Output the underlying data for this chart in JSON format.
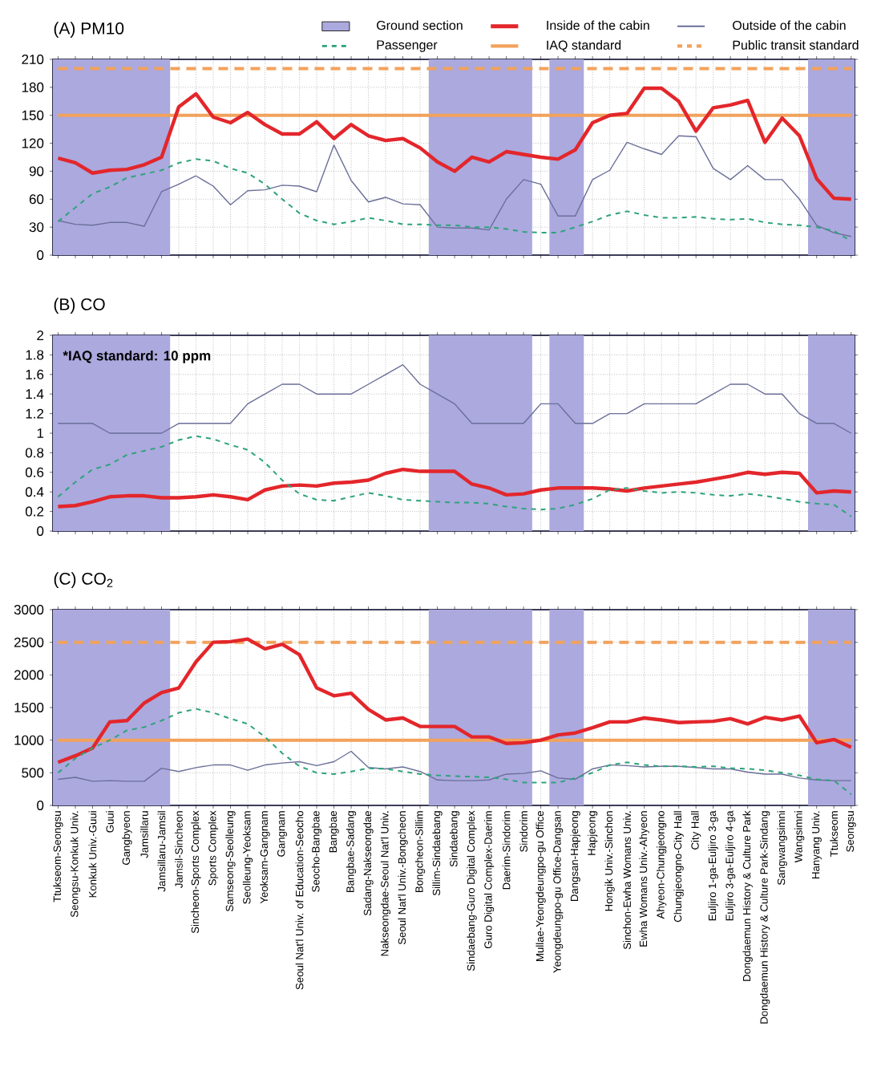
{
  "chart_data": [
    {
      "type": "line",
      "title": "(A) PM10",
      "categories": [
        "Ttukseom-Seongsu",
        "Seongsu-Konkuk Univ.",
        "Konkuk Univ.-Guui",
        "Guui",
        "Gangbyeon",
        "Jamsillaru",
        "Jamsillaru-Jamsil",
        "Jamsil-Sincheon",
        "Sincheon-Sports Complex",
        "Sports Complex",
        "Samseong-Seolleung",
        "Seolleung-Yeoksam",
        "Yeoksam-Gangnam",
        "Gangnam",
        "Seoul Nat'l Univ. of Education-Seocho",
        "Seocho-Bangbae",
        "Bangbae",
        "Bangbae-Sadang",
        "Sadang-Nakseongdae",
        "Nakseongdae-Seoul Nat'l Univ.",
        "Seoul Nat'l Univ.-Bongcheon",
        "Bongcheon-Sillim",
        "Sillim-Sindaebang",
        "Sindaebang",
        "Sindaebang-Guro Digital Complex",
        "Guro Digital Complex-Daerim",
        "Daerim-Sindorim",
        "Sindorim",
        "Mullae-Yeongdeungpo-gu Office",
        "Yeongdeungpo-gu Office-Dangsan",
        "Dangsan-Hapjeong",
        "Hapjeong",
        "Hongik Univ.-Sinchon",
        "Sinchon-Ewha Womans Univ.",
        "Ewha Womans Univ.-Ahyeon",
        "Ahyeon-Chungjeongno",
        "Chungjeongno-City Hall",
        "City Hall",
        "Euljiro 1-ga-Euljiro 3-ga",
        "Euljiro 3-ga-Euljiro 4-ga",
        "Dongdaemun History & Culture Park",
        "Dongdaemun History & Culture Park-Sindang",
        "Sangwangsimni",
        "Wangsimni",
        "Hanyang Univ.",
        "Ttukseom",
        "Seongsu"
      ],
      "series": [
        {
          "name": "Inside of the cabin",
          "color": "#e3262b",
          "values": [
            104,
            99,
            88,
            91,
            92,
            97,
            105,
            159,
            173,
            148,
            142,
            153,
            140,
            130,
            130,
            143,
            125,
            140,
            128,
            123,
            125,
            115,
            100,
            90,
            105,
            100,
            111,
            108,
            105,
            103,
            113,
            142,
            150,
            152,
            179,
            179,
            165,
            133,
            158,
            161,
            166,
            121,
            147,
            128,
            82,
            61,
            60
          ]
        },
        {
          "name": "Outside of the cabin",
          "color": "#6b6f99",
          "values": [
            37,
            33,
            32,
            35,
            35,
            31,
            68,
            76,
            85,
            74,
            54,
            69,
            70,
            75,
            74,
            68,
            118,
            80,
            57,
            62,
            55,
            54,
            30,
            29,
            29,
            27,
            60,
            81,
            76,
            42,
            42,
            81,
            91,
            121,
            114,
            108,
            128,
            127,
            93,
            81,
            96,
            81,
            81,
            60,
            32,
            24,
            20
          ]
        },
        {
          "name": "Passenger",
          "color": "#2ea37a",
          "line_style": "dashed",
          "values": [
            36,
            51,
            66,
            73,
            83,
            87,
            91,
            99,
            103,
            101,
            93,
            88,
            76,
            60,
            45,
            37,
            33,
            36,
            40,
            37,
            33,
            33,
            32,
            32,
            30,
            30,
            28,
            25,
            24,
            24,
            30,
            36,
            43,
            47,
            43,
            40,
            40,
            41,
            39,
            38,
            39,
            35,
            33,
            32,
            30,
            26,
            15
          ]
        }
      ],
      "ylim": [
        0,
        210
      ],
      "yticks": [
        0,
        30,
        60,
        90,
        120,
        150,
        180,
        210
      ],
      "ref_lines": [
        {
          "axis": "y",
          "value": 150,
          "label": "IAQ standard",
          "color": "#f2a25c",
          "line_style": "solid"
        },
        {
          "axis": "y",
          "value": 200,
          "label": "Public transit standard",
          "color": "#f2a25c",
          "line_style": "dashed"
        }
      ],
      "bands": [
        {
          "axis": "x",
          "from": "Ttukseom-Seongsu",
          "to": "Jamsillaru-Jamsil",
          "label": "Ground section",
          "color": "#aba9de"
        },
        {
          "axis": "x",
          "from": "Sillim-Sindaebang",
          "to": "Sindorim",
          "color": "#aba9de"
        },
        {
          "axis": "x",
          "from": "Yeongdeungpo-gu Office-Dangsan",
          "to": "Dangsan-Hapjeong",
          "color": "#aba9de"
        },
        {
          "axis": "x",
          "from": "Hanyang Univ.",
          "to": "Seongsu",
          "color": "#aba9de"
        }
      ],
      "grid": true,
      "legend": "top",
      "tick_labels": "y"
    },
    {
      "type": "line",
      "title": "(B) CO",
      "categories": [
        "Ttukseom-Seongsu",
        "Seongsu-Konkuk Univ.",
        "Konkuk Univ.-Guui",
        "Guui",
        "Gangbyeon",
        "Jamsillaru",
        "Jamsillaru-Jamsil",
        "Jamsil-Sincheon",
        "Sincheon-Sports Complex",
        "Sports Complex",
        "Samseong-Seolleung",
        "Seolleung-Yeoksam",
        "Yeoksam-Gangnam",
        "Gangnam",
        "Seoul Nat'l Univ. of Education-Seocho",
        "Seocho-Bangbae",
        "Bangbae",
        "Bangbae-Sadang",
        "Sadang-Nakseongdae",
        "Nakseongdae-Seoul Nat'l Univ.",
        "Seoul Nat'l Univ.-Bongcheon",
        "Bongcheon-Sillim",
        "Sillim-Sindaebang",
        "Sindaebang",
        "Sindaebang-Guro Digital Complex",
        "Guro Digital Complex-Daerim",
        "Daerim-Sindorim",
        "Sindorim",
        "Mullae-Yeongdeungpo-gu Office",
        "Yeongdeungpo-gu Office-Dangsan",
        "Dangsan-Hapjeong",
        "Hapjeong",
        "Hongik Univ.-Sinchon",
        "Sinchon-Ewha Womans Univ.",
        "Ewha Womans Univ.-Ahyeon",
        "Ahyeon-Chungjeongno",
        "Chungjeongno-City Hall",
        "City Hall",
        "Euljiro 1-ga-Euljiro 3-ga",
        "Euljiro 3-ga-Euljiro 4-ga",
        "Dongdaemun History & Culture Park",
        "Dongdaemun History & Culture Park-Sindang",
        "Sangwangsimni",
        "Wangsimni",
        "Hanyang Univ.",
        "Ttukseom",
        "Seongsu"
      ],
      "series": [
        {
          "color": "#e3262b",
          "values": [
            0.25,
            0.26,
            0.3,
            0.35,
            0.36,
            0.36,
            0.34,
            0.34,
            0.35,
            0.37,
            0.35,
            0.32,
            0.42,
            0.46,
            0.47,
            0.46,
            0.49,
            0.5,
            0.52,
            0.59,
            0.63,
            0.61,
            0.61,
            0.61,
            0.48,
            0.44,
            0.37,
            0.38,
            0.42,
            0.44,
            0.44,
            0.44,
            0.43,
            0.41,
            0.44,
            0.46,
            0.48,
            0.5,
            0.53,
            0.56,
            0.6,
            0.58,
            0.6,
            0.59,
            0.39,
            0.41,
            0.4
          ]
        },
        {
          "color": "#6b6f99",
          "values": [
            1.1,
            1.1,
            1.1,
            1.0,
            1.0,
            1.0,
            1.0,
            1.1,
            1.1,
            1.1,
            1.1,
            1.3,
            1.4,
            1.5,
            1.5,
            1.4,
            1.4,
            1.4,
            1.5,
            1.6,
            1.7,
            1.5,
            1.4,
            1.3,
            1.1,
            1.1,
            1.1,
            1.1,
            1.3,
            1.3,
            1.1,
            1.1,
            1.2,
            1.2,
            1.3,
            1.3,
            1.3,
            1.3,
            1.4,
            1.5,
            1.5,
            1.4,
            1.4,
            1.2,
            1.1,
            1.1,
            1.0
          ]
        },
        {
          "color": "#2ea37a",
          "line_style": "dashed",
          "values": [
            0.35,
            0.5,
            0.63,
            0.68,
            0.78,
            0.82,
            0.86,
            0.93,
            0.97,
            0.94,
            0.88,
            0.83,
            0.7,
            0.52,
            0.38,
            0.32,
            0.31,
            0.35,
            0.39,
            0.36,
            0.32,
            0.31,
            0.3,
            0.29,
            0.29,
            0.28,
            0.25,
            0.23,
            0.22,
            0.23,
            0.27,
            0.33,
            0.42,
            0.44,
            0.41,
            0.39,
            0.4,
            0.39,
            0.37,
            0.36,
            0.38,
            0.36,
            0.33,
            0.3,
            0.28,
            0.27,
            0.15
          ]
        }
      ],
      "ylim": [
        0,
        2
      ],
      "yticks": [
        0,
        0.2,
        0.4,
        0.6,
        0.8,
        1,
        1.2,
        1.4,
        1.6,
        1.8,
        2
      ],
      "bands": [
        {
          "axis": "x",
          "from": "Ttukseom-Seongsu",
          "to": "Jamsillaru-Jamsil",
          "color": "#aba9de"
        },
        {
          "axis": "x",
          "from": "Sillim-Sindaebang",
          "to": "Sindorim",
          "color": "#aba9de"
        },
        {
          "axis": "x",
          "from": "Yeongdeungpo-gu Office-Dangsan",
          "to": "Dangsan-Hapjeong",
          "color": "#aba9de"
        },
        {
          "axis": "x",
          "from": "Hanyang Univ.",
          "to": "Seongsu",
          "color": "#aba9de"
        }
      ],
      "annotations": [
        "*IAQ standard: 10 ppm"
      ],
      "grid": true,
      "tick_labels": "y"
    },
    {
      "type": "line",
      "title": "(C) CO$_{2}$",
      "categories": [
        "Ttukseom-Seongsu",
        "Seongsu-Konkuk Univ.",
        "Konkuk Univ.-Guui",
        "Guui",
        "Gangbyeon",
        "Jamsillaru",
        "Jamsillaru-Jamsil",
        "Jamsil-Sincheon",
        "Sincheon-Sports Complex",
        "Sports Complex",
        "Samseong-Seolleung",
        "Seolleung-Yeoksam",
        "Yeoksam-Gangnam",
        "Gangnam",
        "Seoul Nat'l Univ. of Education-Seocho",
        "Seocho-Bangbae",
        "Bangbae",
        "Bangbae-Sadang",
        "Sadang-Nakseongdae",
        "Nakseongdae-Seoul Nat'l Univ.",
        "Seoul Nat'l Univ.-Bongcheon",
        "Bongcheon-Sillim",
        "Sillim-Sindaebang",
        "Sindaebang",
        "Sindaebang-Guro Digital Complex",
        "Guro Digital Complex-Daerim",
        "Daerim-Sindorim",
        "Sindorim",
        "Mullae-Yeongdeungpo-gu Office",
        "Yeongdeungpo-gu Office-Dangsan",
        "Dangsan-Hapjeong",
        "Hapjeong",
        "Hongik Univ.-Sinchon",
        "Sinchon-Ewha Womans Univ.",
        "Ewha Womans Univ.-Ahyeon",
        "Ahyeon-Chungjeongno",
        "Chungjeongno-City Hall",
        "City Hall",
        "Euljiro 1-ga-Euljiro 3-ga",
        "Euljiro 3-ga-Euljiro 4-ga",
        "Dongdaemun History & Culture Park",
        "Dongdaemun History & Culture Park-Sindang",
        "Sangwangsimni",
        "Wangsimni",
        "Hanyang Univ.",
        "Ttukseom",
        "Seongsu"
      ],
      "series": [
        {
          "color": "#e3262b",
          "values": [
            660,
            760,
            880,
            1280,
            1300,
            1570,
            1730,
            1800,
            2200,
            2500,
            2510,
            2550,
            2400,
            2470,
            2310,
            1800,
            1680,
            1720,
            1470,
            1310,
            1340,
            1210,
            1210,
            1210,
            1050,
            1050,
            950,
            960,
            1000,
            1080,
            1110,
            1190,
            1280,
            1280,
            1340,
            1310,
            1270,
            1280,
            1290,
            1330,
            1250,
            1350,
            1310,
            1370,
            960,
            1010,
            890
          ]
        },
        {
          "color": "#6b6f99",
          "values": [
            400,
            430,
            370,
            380,
            370,
            370,
            570,
            520,
            580,
            620,
            620,
            540,
            620,
            650,
            670,
            610,
            670,
            830,
            580,
            560,
            590,
            520,
            390,
            380,
            380,
            390,
            480,
            490,
            530,
            420,
            400,
            560,
            620,
            610,
            590,
            600,
            600,
            580,
            560,
            560,
            510,
            480,
            480,
            420,
            390,
            380,
            380
          ]
        },
        {
          "color": "#2ea37a",
          "line_style": "dashed",
          "values": [
            500,
            720,
            880,
            1000,
            1150,
            1200,
            1300,
            1420,
            1480,
            1420,
            1330,
            1250,
            1050,
            800,
            600,
            500,
            480,
            520,
            570,
            560,
            520,
            480,
            460,
            450,
            440,
            430,
            400,
            350,
            350,
            350,
            420,
            500,
            620,
            660,
            620,
            600,
            600,
            590,
            600,
            570,
            560,
            540,
            500,
            460,
            400,
            380,
            170
          ]
        }
      ],
      "ylim": [
        0,
        3000
      ],
      "yticks": [
        0,
        500,
        1000,
        1500,
        2000,
        2500,
        3000
      ],
      "ref_lines": [
        {
          "axis": "y",
          "value": 1000,
          "color": "#f2a25c",
          "line_style": "solid"
        },
        {
          "axis": "y",
          "value": 2500,
          "color": "#f2a25c",
          "line_style": "dashed"
        }
      ],
      "bands": [
        {
          "axis": "x",
          "from": "Ttukseom-Seongsu",
          "to": "Jamsillaru-Jamsil",
          "color": "#aba9de"
        },
        {
          "axis": "x",
          "from": "Sillim-Sindaebang",
          "to": "Sindorim",
          "color": "#aba9de"
        },
        {
          "axis": "x",
          "from": "Yeongdeungpo-gu Office-Dangsan",
          "to": "Dangsan-Hapjeong",
          "color": "#aba9de"
        },
        {
          "axis": "x",
          "from": "Hanyang Univ.",
          "to": "Seongsu",
          "color": "#aba9de"
        }
      ],
      "grid": true
    }
  ]
}
